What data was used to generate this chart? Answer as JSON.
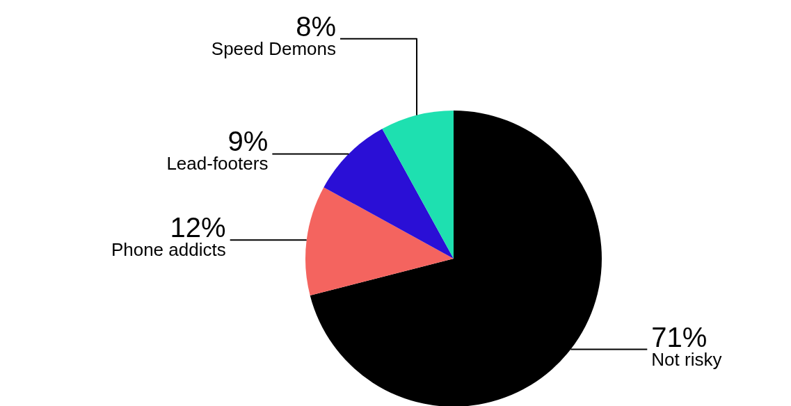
{
  "chart_data": {
    "type": "pie",
    "categories": [
      "Not risky",
      "Phone addicts",
      "Lead-footers",
      "Speed Demons"
    ],
    "values": [
      71,
      12,
      9,
      8
    ],
    "colors": [
      "#000000",
      "#f4645f",
      "#2a0fd6",
      "#1ee0b0"
    ],
    "value_labels": [
      "71%",
      "12%",
      "9%",
      "8%"
    ]
  }
}
